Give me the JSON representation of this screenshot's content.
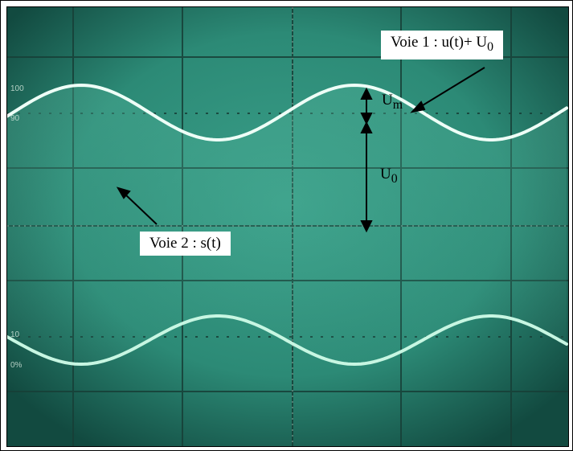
{
  "annotations": {
    "voie1": {
      "text": "Voie 1 : u(t)+ U",
      "sub": "0"
    },
    "voie2": {
      "text": "Voie 2 : s(t)"
    },
    "um": {
      "text": "U",
      "sub": "m"
    },
    "u0": {
      "text": "U",
      "sub": "0"
    }
  },
  "screen_markings": {
    "top_left": "100",
    "mid_left": "90",
    "low_left_1": "10",
    "low_left_2": "0%"
  },
  "colors": {
    "screen": "#2c8a76",
    "trace": "#e8fff4",
    "trace2": "#b9f3d8",
    "grid": "#153f36"
  }
}
